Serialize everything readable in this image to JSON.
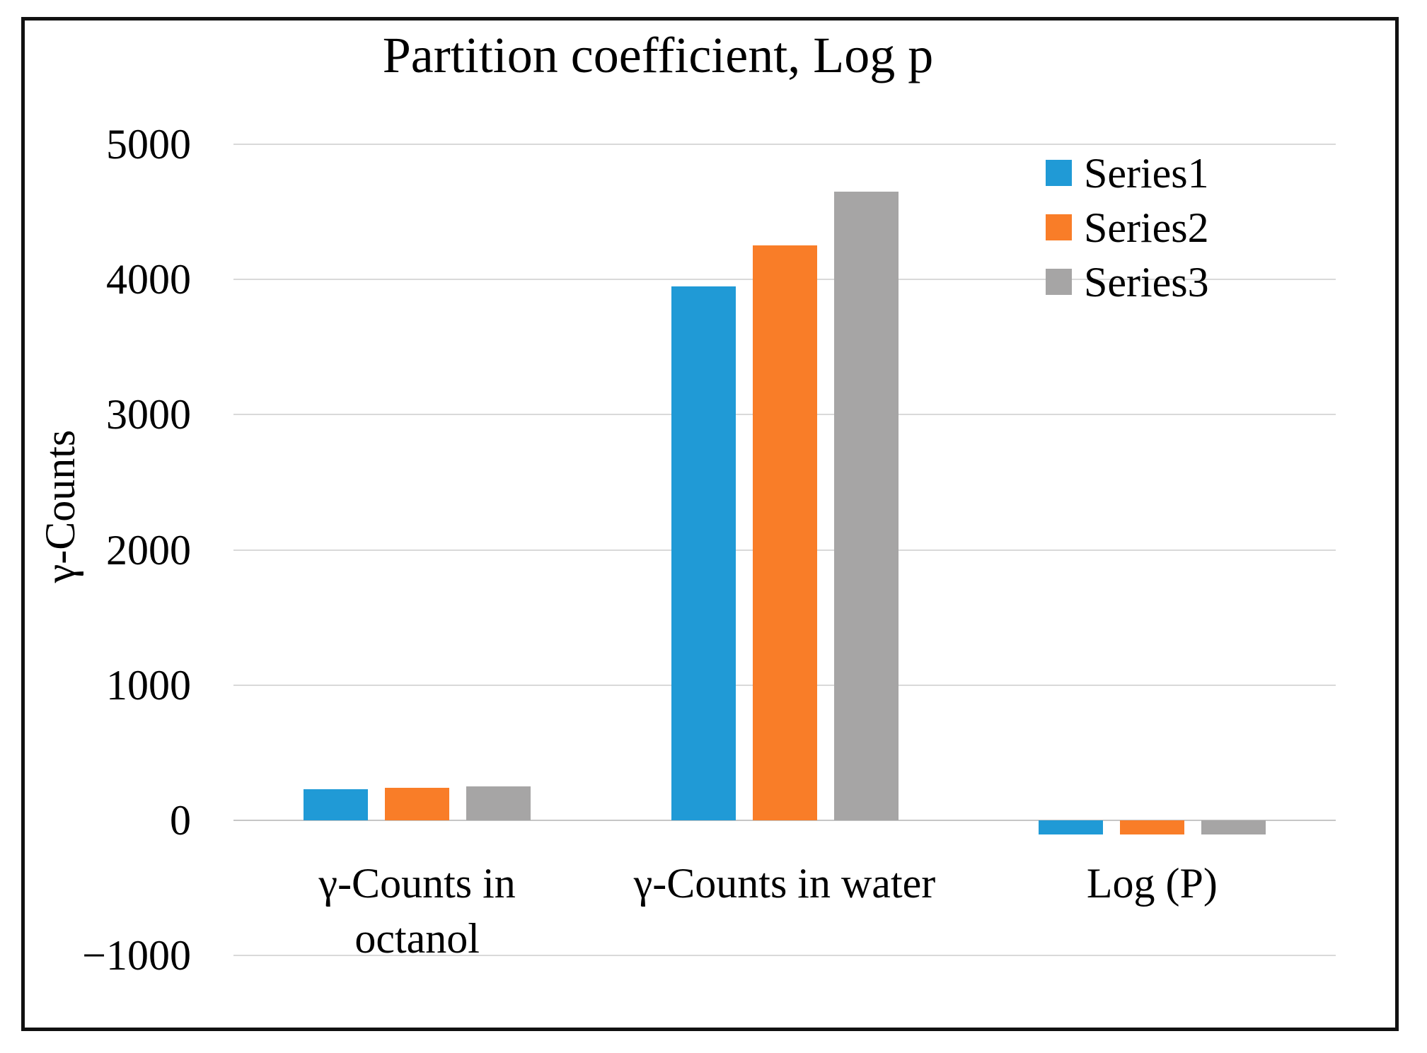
{
  "chart_data": {
    "type": "bar",
    "title": "Partition coefficient, Log p",
    "ylabel": "γ-Counts",
    "xlabel": "",
    "categories": [
      "γ-Counts in octanol",
      "γ-Counts in water",
      "Log (P)"
    ],
    "category_label_lines": [
      [
        "γ-Counts in",
        "octanol"
      ],
      [
        "γ-Counts in water"
      ],
      [
        "Log (P)"
      ]
    ],
    "series": [
      {
        "name": "Series1",
        "color": "#209AD6",
        "values": [
          230,
          3950,
          -105
        ]
      },
      {
        "name": "Series2",
        "color": "#F97D28",
        "values": [
          240,
          4250,
          -105
        ]
      },
      {
        "name": "Series3",
        "color": "#A6A5A5",
        "values": [
          250,
          4650,
          -105
        ]
      }
    ],
    "ylim": [
      -1000,
      5000
    ],
    "ytick_step": 1000,
    "ytick_labels": [
      "5000",
      "4000",
      "3000",
      "2000",
      "1000",
      "0",
      "−1000"
    ],
    "grid": true,
    "legend_position": "top-right-inside",
    "gridline_color": "#D9D9D9",
    "zero_line_color": "#C6C6C6",
    "frame_color": "#111111",
    "text_color": "#000000"
  }
}
